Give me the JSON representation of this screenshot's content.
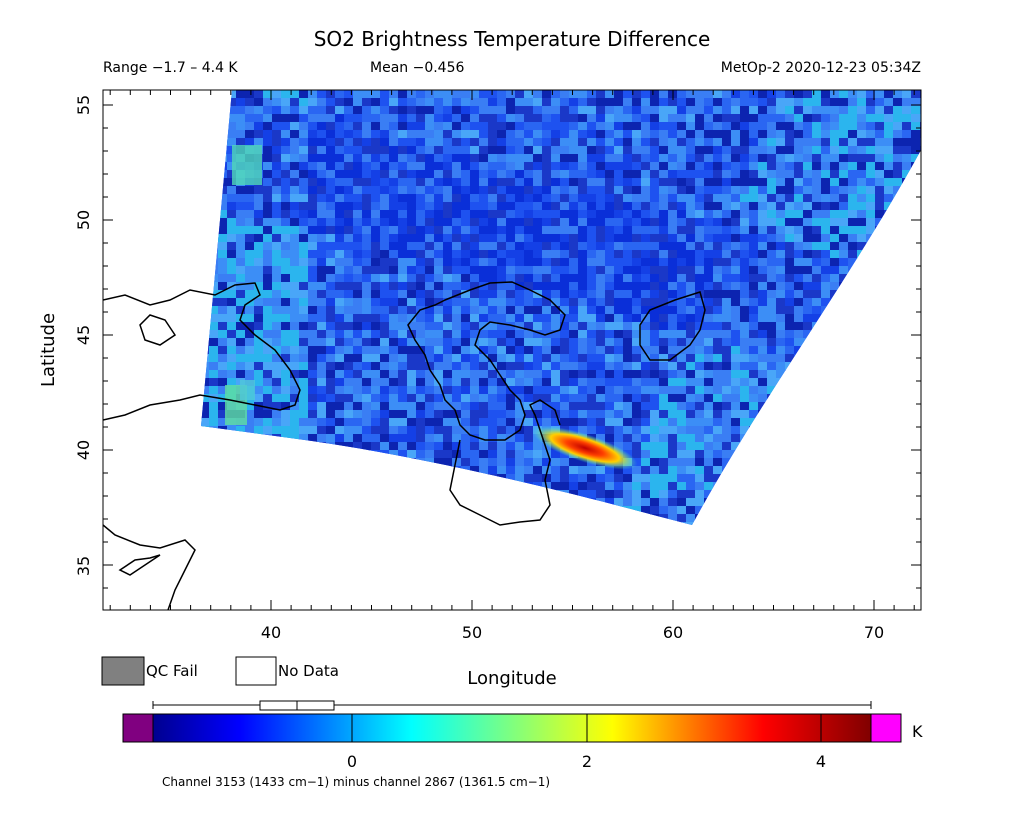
{
  "title": "SO2 Brightness Temperature Difference",
  "subtitle": {
    "range": "Range −1.7 – 4.4 K",
    "mean": "Mean −0.456",
    "source": "MetOp-2 2020-12-23 05:34Z"
  },
  "axes": {
    "ylabel": "Latitude",
    "xlabel": "Longitude",
    "xticks": [
      "40",
      "50",
      "60",
      "70"
    ],
    "yticks": [
      "35",
      "40",
      "45",
      "50",
      "55"
    ],
    "xlim": [
      32,
      72.5
    ],
    "ylim": [
      33,
      55.8
    ]
  },
  "legend": {
    "qc_fail": "QC Fail",
    "no_data": "No Data",
    "qc_fail_color": "#808080",
    "no_data_color": "#ffffff"
  },
  "colorbar": {
    "unit": "K",
    "ticks": [
      "0",
      "2",
      "4"
    ],
    "range": [
      -1.7,
      4.4
    ],
    "under_color": "#800080",
    "over_color": "#ff00ff",
    "footnote": "Channel 3153 (1433 cm−1) minus channel 2867 (1361.5 cm−1)",
    "boxplot": {
      "min": -1.7,
      "q1": -0.8,
      "median": -0.5,
      "q3": -0.2,
      "max": 4.4
    }
  },
  "map_data": {
    "so2_plume": {
      "peak_value": 4.4,
      "peak_lon": 56.5,
      "peak_lat": 39.8
    }
  }
}
